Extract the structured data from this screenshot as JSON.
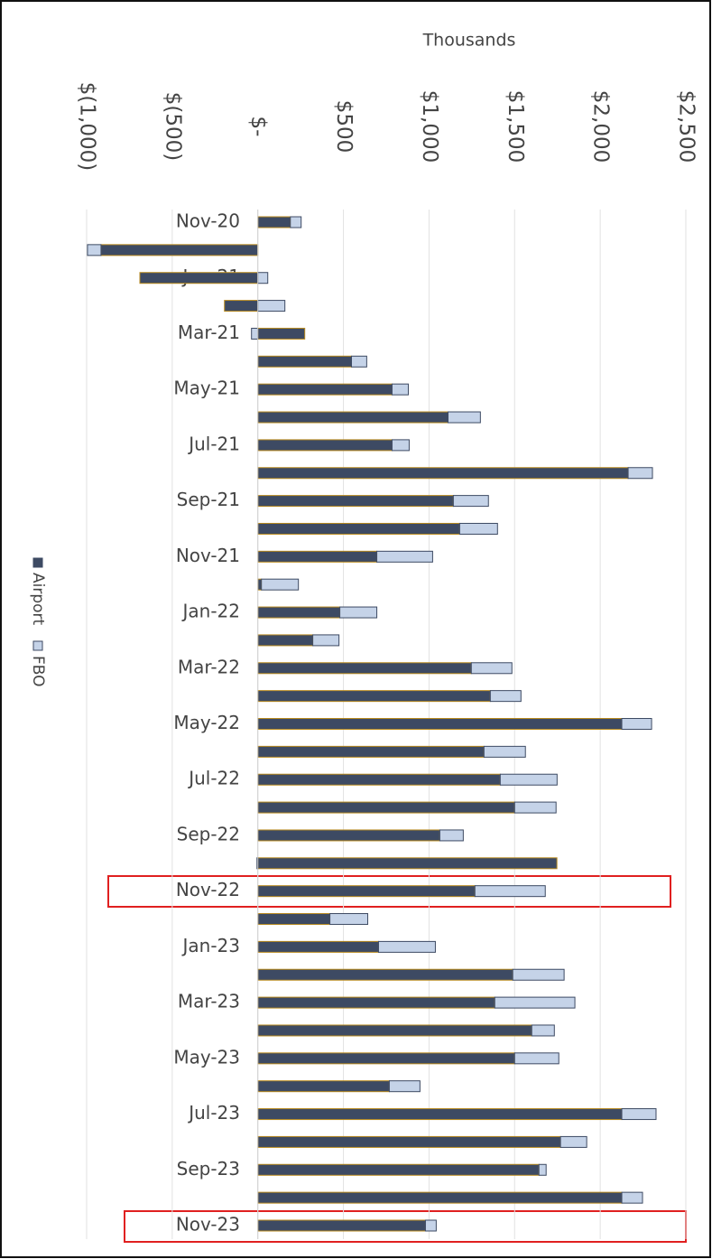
{
  "chart_data": {
    "type": "stacked_bar_horizontal",
    "axis_title": "Thousands",
    "categories": [
      "Nov-20",
      null,
      "Jan-21",
      null,
      "Mar-21",
      null,
      "May-21",
      null,
      "Jul-21",
      null,
      "Sep-21",
      null,
      "Nov-21",
      null,
      "Jan-22",
      null,
      "Mar-22",
      null,
      "May-22",
      null,
      "Jul-22",
      null,
      "Sep-22",
      null,
      "Nov-22",
      null,
      "Jan-23",
      null,
      "Mar-23",
      null,
      "May-23",
      null,
      "Jul-23",
      null,
      "Sep-23",
      null,
      "Nov-23"
    ],
    "series": [
      {
        "name": "Airport",
        "color": "#3d4a63",
        "values": [
          190,
          -916,
          -689,
          -195,
          274,
          547,
          784,
          1111,
          784,
          2163,
          1142,
          1179,
          695,
          21,
          479,
          321,
          1247,
          1358,
          2126,
          1321,
          1416,
          1500,
          1063,
          1747,
          1268,
          421,
          705,
          1489,
          1384,
          1600,
          1500,
          768,
          2126,
          1768,
          1642,
          2126,
          979
        ]
      },
      {
        "name": "FBO",
        "color": "#c5d3e8",
        "values": [
          63,
          -79,
          58,
          158,
          -37,
          89,
          95,
          189,
          100,
          142,
          205,
          221,
          326,
          216,
          216,
          153,
          237,
          179,
          174,
          242,
          332,
          242,
          137,
          -5,
          411,
          221,
          332,
          300,
          468,
          132,
          258,
          179,
          200,
          153,
          42,
          121,
          63
        ]
      }
    ],
    "xlim": [
      -1000,
      2500
    ],
    "xticks": [
      {
        "value": -1000,
        "label": "$(1,000)"
      },
      {
        "value": -500,
        "label": "$(500)"
      },
      {
        "value": 0,
        "label": "$-"
      },
      {
        "value": 500,
        "label": "$500"
      },
      {
        "value": 1000,
        "label": "$1,000"
      },
      {
        "value": 1500,
        "label": "$1,500"
      },
      {
        "value": 2000,
        "label": "$2,000"
      },
      {
        "value": 2500,
        "label": "$2,500"
      }
    ],
    "grid": true,
    "legend": "left"
  }
}
